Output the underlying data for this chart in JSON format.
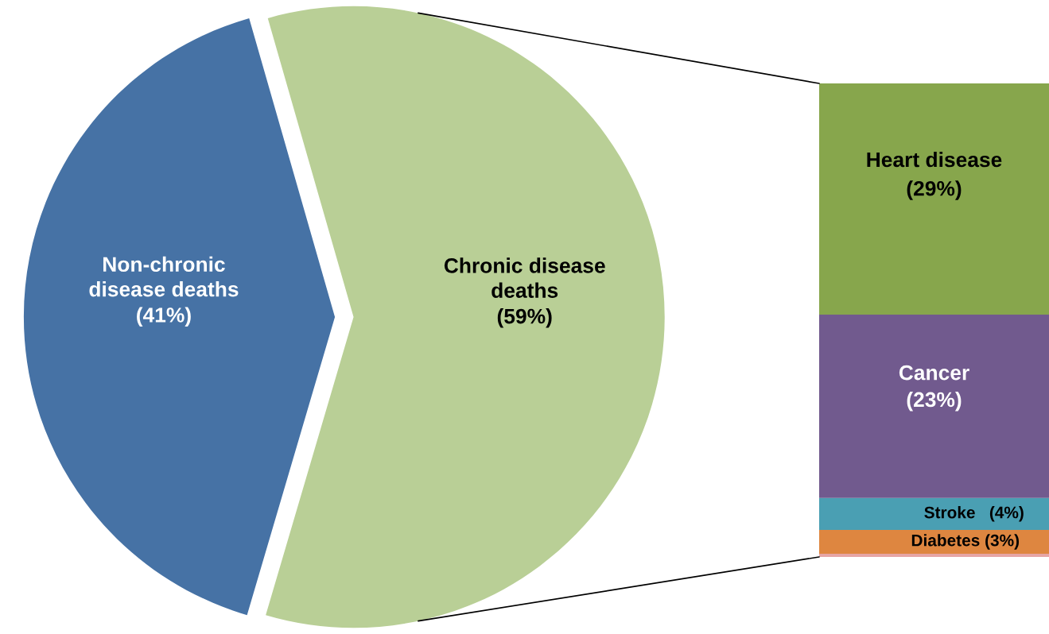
{
  "chart_data": [
    {
      "type": "pie",
      "categories": [
        "Non-chronic\ndisease deaths",
        "Chronic disease\ndeaths"
      ],
      "values": [
        41,
        59
      ],
      "colors": [
        "#4672a5",
        "#b9cf96"
      ],
      "value_labels": [
        "(41%)",
        "(59%)"
      ]
    },
    {
      "type": "bar",
      "stacked": true,
      "categories": [
        null
      ],
      "series": [
        {
          "color": "#e6a5a5",
          "values": [
            0.4
          ],
          "value_labels": [
            null
          ]
        },
        {
          "name": "Diabetes",
          "color": "#de8640",
          "values": [
            3
          ],
          "value_labels": [
            "(3%)"
          ]
        },
        {
          "name": "Stroke",
          "color": "#4a9fb3",
          "values": [
            4
          ],
          "value_labels": [
            "(4%)"
          ]
        },
        {
          "name": "Cancer",
          "color": "#715a8e",
          "values": [
            23
          ],
          "value_labels": [
            "(23%)"
          ]
        },
        {
          "name": "Heart disease",
          "color": "#87a64c",
          "values": [
            29
          ],
          "value_labels": [
            "(29%)"
          ]
        }
      ]
    }
  ]
}
